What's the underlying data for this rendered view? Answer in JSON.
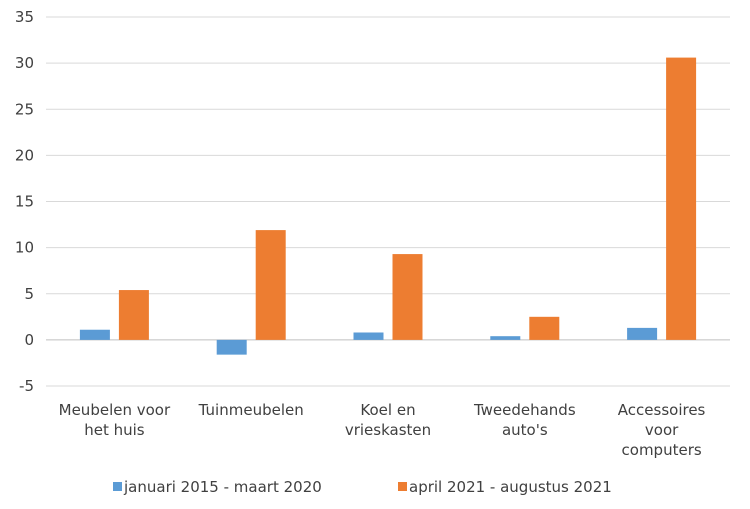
{
  "chart_data": {
    "type": "bar",
    "title": "",
    "xlabel": "",
    "ylabel": "",
    "ylim": [
      -5,
      35
    ],
    "y_ticks": [
      "-5",
      "0",
      "5",
      "10",
      "15",
      "20",
      "25",
      "30",
      "35"
    ],
    "grid": true,
    "legend_position": "bottom",
    "categories": [
      [
        "Meubelen voor",
        "het huis"
      ],
      [
        "Tuinmeubelen"
      ],
      [
        "Koel en",
        "vrieskasten"
      ],
      [
        "Tweedehands",
        "auto's"
      ],
      [
        "Accessoires",
        "voor",
        "computers"
      ]
    ],
    "series": [
      {
        "name": "januari 2015 - maart 2020",
        "color": "#5b9bd5",
        "values": [
          1.1,
          -1.6,
          0.8,
          0.4,
          1.3
        ]
      },
      {
        "name": "april 2021 - augustus 2021",
        "color": "#ed7d31",
        "values": [
          5.4,
          11.9,
          9.3,
          2.5,
          30.6
        ]
      }
    ]
  }
}
